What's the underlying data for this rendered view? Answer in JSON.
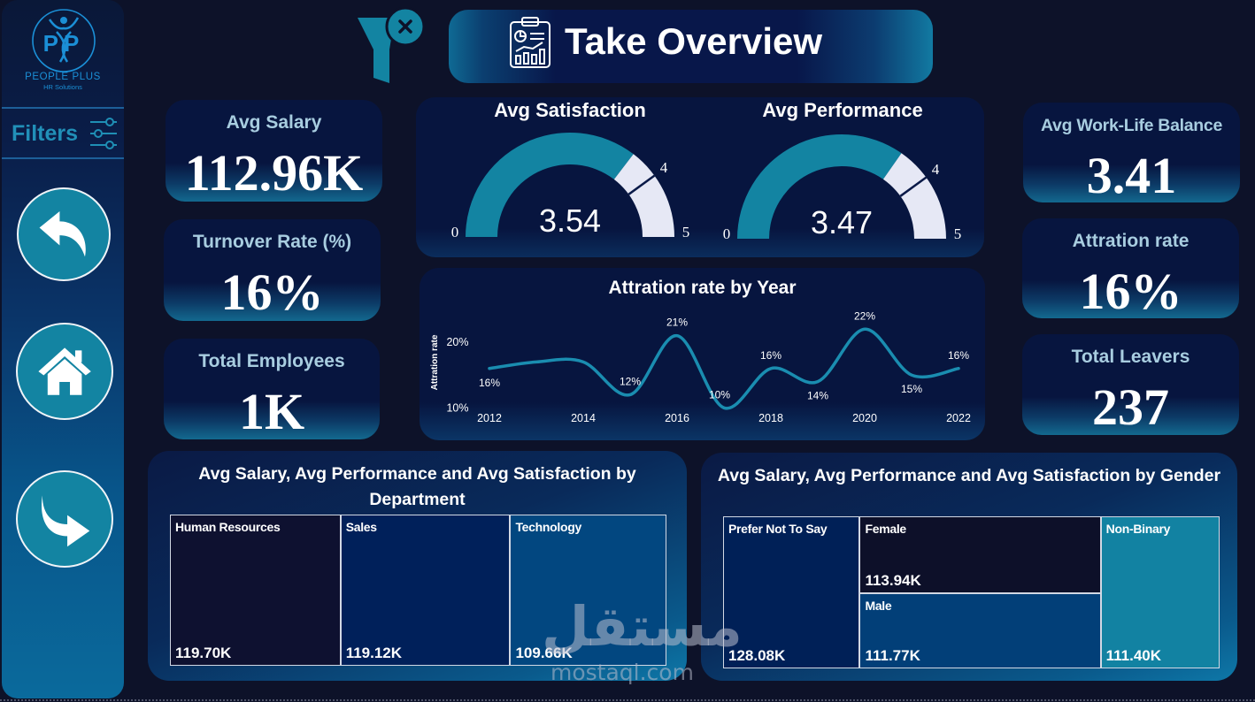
{
  "app": {
    "title": "Take Overview"
  },
  "sidebar": {
    "brand_monogram": "PP",
    "brand_name": "PEOPLE PLUS",
    "brand_tagline": "HR Solutions",
    "filters_label": "Filters",
    "icons": {
      "logo": "people-plus-logo",
      "filters": "sliders-icon"
    },
    "nav_buttons": [
      {
        "name": "back",
        "icon": "back-arrow-icon"
      },
      {
        "name": "home",
        "icon": "home-icon"
      },
      {
        "name": "forward",
        "icon": "forward-arrow-icon"
      }
    ]
  },
  "header": {
    "title": "Take Overview",
    "title_icon": "clipboard-report-icon",
    "clear_filters_icon": "funnel-clear-icon"
  },
  "kpis": {
    "left": [
      {
        "label": "Avg Salary",
        "value": "112.96K"
      },
      {
        "label": "Turnover Rate (%)",
        "value": "16%"
      },
      {
        "label": "Total Employees",
        "value": "1K"
      }
    ],
    "right": [
      {
        "label": "Avg Work-Life Balance",
        "value": "3.41"
      },
      {
        "label": "Attration rate",
        "value": "16%"
      },
      {
        "label": "Total Leavers",
        "value": "237"
      }
    ]
  },
  "colors": {
    "background": "#0d1229",
    "card": "#07153f",
    "accent": "#1384a2",
    "gauge_remainder": "#e6e8f5",
    "kpi_label": "#a8cde0",
    "brand": "#1b8fd6",
    "text": "#ffffff"
  },
  "watermark": {
    "arabic": "مستقل",
    "latin": "mostaql.com"
  },
  "chart_data": [
    {
      "type": "gauge",
      "title": "Avg Satisfaction",
      "value": 3.54,
      "value_label": "3.54",
      "min": 0,
      "max": 5,
      "target": 4,
      "min_label": "0",
      "max_label": "5",
      "target_label": "4"
    },
    {
      "type": "gauge",
      "title": "Avg Performance",
      "value": 3.47,
      "value_label": "3.47",
      "min": 0,
      "max": 5,
      "target": 4,
      "min_label": "0",
      "max_label": "5",
      "target_label": "4"
    },
    {
      "type": "line",
      "title": "Attration rate by Year",
      "xlabel": "",
      "ylabel": "Attration rate",
      "x": [
        2012,
        2013,
        2014,
        2015,
        2016,
        2017,
        2018,
        2019,
        2020,
        2021,
        2022
      ],
      "series": [
        {
          "name": "Attration rate",
          "unit": "%",
          "values": [
            16,
            17,
            17,
            12,
            21,
            10,
            16,
            14,
            22,
            15,
            16
          ]
        }
      ],
      "data_labels": [
        "16%",
        null,
        null,
        "12%",
        "21%",
        "10%",
        "16%",
        "14%",
        "22%",
        "15%",
        "16%"
      ],
      "x_tick_labels": [
        "2012",
        "2014",
        "2016",
        "2018",
        "2020",
        "2022"
      ],
      "y_ticks": [
        10,
        20
      ],
      "y_tick_labels": [
        "10%",
        "20%"
      ],
      "ylim": [
        9.5,
        25
      ],
      "grid": false,
      "legend": "none"
    },
    {
      "type": "treemap",
      "title": "Avg Salary, Avg Performance and Avg Satisfaction by Department",
      "categories": [
        "Human Resources",
        "Sales",
        "Technology"
      ],
      "values": [
        119.7,
        119.12,
        109.66
      ],
      "value_labels": [
        "119.70K",
        "119.12K",
        "109.66K"
      ],
      "colors": [
        "#0e1130",
        "#00205a",
        "#024780"
      ]
    },
    {
      "type": "treemap",
      "title": "Avg Salary, Avg Performance and Avg Satisfaction by Gender",
      "categories": [
        "Prefer Not To Say",
        "Female",
        "Male",
        "Non-Binary"
      ],
      "values": [
        128.08,
        113.94,
        111.77,
        111.4
      ],
      "value_labels": [
        "128.08K",
        "113.94K",
        "111.77K",
        "111.40K"
      ],
      "colors": [
        "#002057",
        "#0d1029",
        "#023f78",
        "#1282a2"
      ]
    }
  ]
}
